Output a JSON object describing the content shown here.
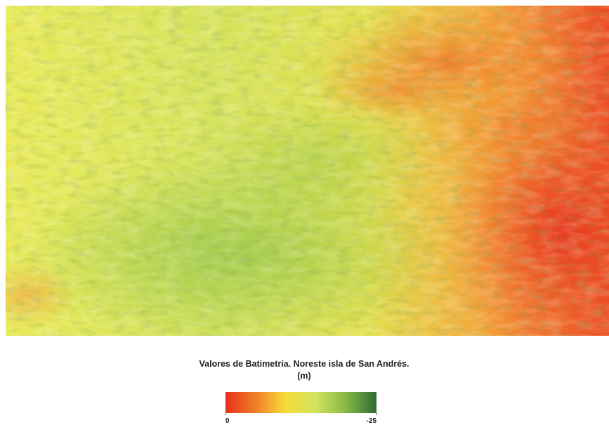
{
  "legend": {
    "title": "Valores de Batimetría. Noreste isla de San Andrés.",
    "unit": "(m)",
    "ticks": [
      0,
      -25
    ],
    "colors": [
      "#e8301c",
      "#f07f28",
      "#f6dc3a",
      "#cfe35e",
      "#86b847",
      "#2e6b33"
    ]
  }
}
